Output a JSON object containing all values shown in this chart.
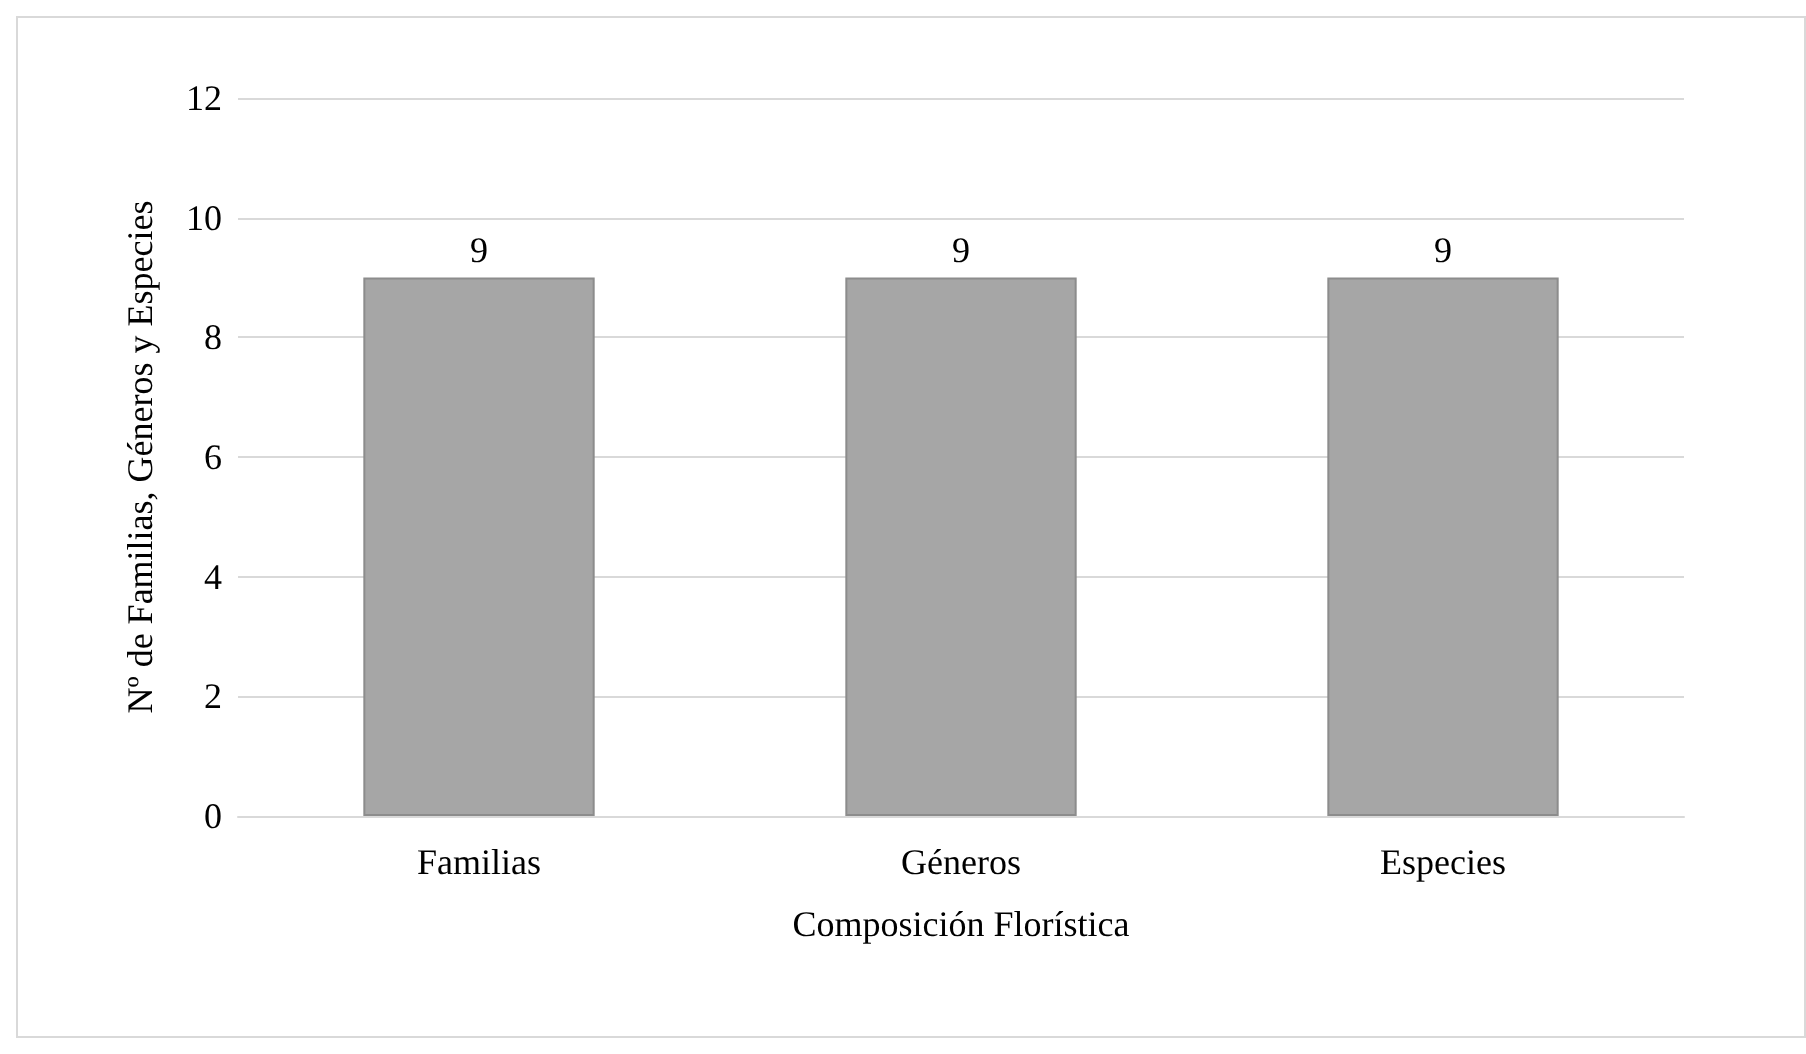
{
  "chart_data": {
    "type": "bar",
    "xlabel": "Composición Florística",
    "ylabel": "Nº de Familias, Géneros y Especies",
    "categories": [
      "Familias",
      "Géneros",
      "Especies"
    ],
    "values": [
      9,
      9,
      9
    ],
    "color": "#a6a6a6",
    "ylim": [
      0,
      12
    ],
    "yticks": [
      0,
      2,
      4,
      6,
      8,
      10,
      12
    ],
    "grid": "y",
    "data_labels": true
  }
}
